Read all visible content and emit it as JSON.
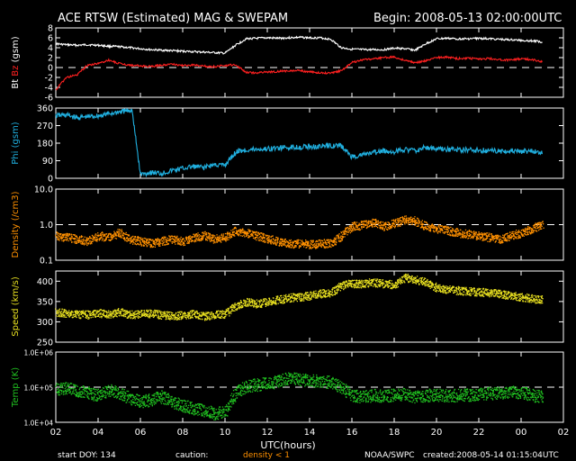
{
  "header": {
    "title": "ACE RTSW (Estimated) MAG & SWEPAM",
    "begin": "Begin: 2008-05-13 02:00:00UTC"
  },
  "footer": {
    "start_doy": "start DOY: 134",
    "caution": "caution:",
    "density_note": "density < 1",
    "agency": "NOAA/SWPC",
    "created": "created:2008-05-14 01:15:04UTC"
  },
  "colors": {
    "background": "#000000",
    "axes": "#ffffff",
    "bt": "#ffffff",
    "bz": "#ff2020",
    "phi": "#20b0e0",
    "density": "#ff9000",
    "speed": "#e8e020",
    "temp": "#20c020"
  },
  "chart_data": [
    {
      "type": "line",
      "panel": "mag",
      "ylabel_parts": [
        "Bt",
        "Bz",
        "(gsm)"
      ],
      "ylim": [
        -6,
        8
      ],
      "yticks": [
        "-6",
        "-4",
        "-2",
        "0",
        "2",
        "4",
        "6",
        "8"
      ],
      "reference_line": 0,
      "series": [
        {
          "name": "Bt",
          "x": [
            2,
            2.5,
            3,
            3.5,
            4,
            4.5,
            5,
            5.5,
            6,
            6.5,
            7,
            7.5,
            8,
            8.5,
            9,
            9.5,
            10,
            10.5,
            11,
            11.5,
            12,
            12.5,
            13,
            13.5,
            14,
            14.5,
            15,
            15.5,
            16,
            16.5,
            17,
            17.5,
            18,
            18.5,
            19,
            19.5,
            20,
            20.5,
            21,
            21.5,
            22,
            22.5,
            23,
            23.5,
            24,
            24.5,
            25
          ],
          "values": [
            4.8,
            4.6,
            4.5,
            4.6,
            4.5,
            4.3,
            4.2,
            4.0,
            3.8,
            3.6,
            3.5,
            3.4,
            3.3,
            3.2,
            3.1,
            3.0,
            2.9,
            4.5,
            5.8,
            5.9,
            6.0,
            5.9,
            6.0,
            6.1,
            6.0,
            6.0,
            5.7,
            4.0,
            3.7,
            3.6,
            3.6,
            3.6,
            3.9,
            3.8,
            3.5,
            4.8,
            5.8,
            5.9,
            5.8,
            5.8,
            5.9,
            5.8,
            5.7,
            5.6,
            5.5,
            5.4,
            5.2
          ]
        },
        {
          "name": "Bz",
          "x": [
            2,
            2.5,
            3,
            3.5,
            4,
            4.5,
            5,
            5.5,
            6,
            6.5,
            7,
            7.5,
            8,
            8.5,
            9,
            9.5,
            10,
            10.5,
            11,
            11.5,
            12,
            12.5,
            13,
            13.5,
            14,
            14.5,
            15,
            15.5,
            16,
            16.5,
            17,
            17.5,
            18,
            18.5,
            19,
            19.5,
            20,
            20.5,
            21,
            21.5,
            22,
            22.5,
            23,
            23.5,
            24,
            24.5,
            25
          ],
          "values": [
            -4.5,
            -2.0,
            -1.5,
            0.5,
            0.8,
            1.5,
            0.8,
            0.5,
            0.3,
            0.2,
            0.5,
            0.7,
            0.4,
            0.5,
            0.3,
            0.2,
            0.4,
            0.6,
            -1.0,
            -1.1,
            -0.9,
            -0.8,
            -0.7,
            -0.6,
            -0.9,
            -1.0,
            -1.2,
            -0.6,
            1.0,
            1.6,
            1.7,
            2.0,
            2.1,
            1.5,
            1.0,
            1.4,
            2.0,
            2.1,
            1.8,
            1.9,
            1.7,
            1.8,
            1.6,
            1.5,
            1.8,
            1.6,
            1.2
          ]
        }
      ]
    },
    {
      "type": "line",
      "panel": "phi",
      "ylabel_parts": [
        "Phi (gsm)"
      ],
      "ylim": [
        0,
        360
      ],
      "yticks": [
        "0",
        "90",
        "180",
        "270",
        "360"
      ],
      "series": [
        {
          "name": "Phi",
          "x": [
            2,
            2.5,
            3,
            3.5,
            4,
            4.5,
            5,
            5.3,
            5.6,
            6,
            6.5,
            7,
            7.5,
            8,
            8.5,
            9,
            9.5,
            10,
            10.3,
            10.6,
            11,
            11.5,
            12,
            12.5,
            13,
            13.5,
            14,
            14.5,
            15,
            15.5,
            16,
            16.5,
            17,
            17.5,
            18,
            18.5,
            19,
            19.5,
            20,
            20.5,
            21,
            21.5,
            22,
            22.5,
            23,
            23.5,
            24,
            24.5,
            25
          ],
          "values": [
            320,
            325,
            310,
            315,
            320,
            330,
            340,
            345,
            350,
            20,
            30,
            25,
            40,
            50,
            60,
            55,
            70,
            65,
            110,
            140,
            145,
            148,
            150,
            155,
            158,
            160,
            162,
            163,
            168,
            165,
            110,
            120,
            130,
            140,
            135,
            150,
            140,
            160,
            150,
            148,
            147,
            145,
            143,
            142,
            140,
            141,
            138,
            139,
            130
          ]
        }
      ]
    },
    {
      "type": "scatter",
      "panel": "density",
      "ylabel_parts": [
        "Density (/cm3)"
      ],
      "yscale": "log",
      "ylim": [
        0.1,
        10.0
      ],
      "yticks": [
        "0.1",
        "1.0",
        "10.0"
      ],
      "reference_line": 1.0,
      "series": [
        {
          "name": "Density",
          "x": [
            2,
            2.5,
            3,
            3.5,
            4,
            4.5,
            5,
            5.5,
            6,
            6.5,
            7,
            7.5,
            8,
            8.5,
            9,
            9.5,
            10,
            10.5,
            11,
            11.5,
            12,
            12.5,
            13,
            13.5,
            14,
            14.5,
            15,
            15.5,
            16,
            16.5,
            17,
            17.5,
            18,
            18.5,
            19,
            19.5,
            20,
            20.5,
            21,
            21.5,
            22,
            22.5,
            23,
            23.5,
            24,
            24.5,
            25
          ],
          "values": [
            0.5,
            0.45,
            0.4,
            0.35,
            0.5,
            0.45,
            0.6,
            0.4,
            0.35,
            0.3,
            0.35,
            0.4,
            0.35,
            0.45,
            0.5,
            0.4,
            0.45,
            0.7,
            0.6,
            0.5,
            0.4,
            0.35,
            0.3,
            0.3,
            0.28,
            0.3,
            0.3,
            0.5,
            0.9,
            1.0,
            1.2,
            0.9,
            1.1,
            1.4,
            1.3,
            0.9,
            0.8,
            0.7,
            0.6,
            0.55,
            0.5,
            0.45,
            0.4,
            0.5,
            0.6,
            0.8,
            1.0
          ]
        }
      ]
    },
    {
      "type": "scatter",
      "panel": "speed",
      "ylabel_parts": [
        "Speed (km/s)"
      ],
      "ylim": [
        250,
        425
      ],
      "yticks": [
        "250",
        "300",
        "350",
        "400"
      ],
      "series": [
        {
          "name": "Speed",
          "x": [
            2,
            2.5,
            3,
            3.5,
            4,
            4.5,
            5,
            5.5,
            6,
            6.5,
            7,
            7.5,
            8,
            8.5,
            9,
            9.5,
            10,
            10.5,
            11,
            11.5,
            12,
            12.5,
            13,
            13.5,
            14,
            14.5,
            15,
            15.5,
            16,
            16.5,
            17,
            17.5,
            18,
            18.5,
            19,
            19.5,
            20,
            20.5,
            21,
            21.5,
            22,
            22.5,
            23,
            23.5,
            24,
            24.5,
            25
          ],
          "values": [
            325,
            322,
            320,
            318,
            322,
            320,
            325,
            318,
            320,
            322,
            318,
            315,
            318,
            320,
            315,
            318,
            320,
            340,
            350,
            345,
            350,
            355,
            360,
            362,
            365,
            370,
            372,
            390,
            395,
            395,
            398,
            395,
            392,
            410,
            405,
            398,
            385,
            380,
            378,
            376,
            374,
            372,
            370,
            365,
            362,
            358,
            355
          ]
        }
      ]
    },
    {
      "type": "scatter",
      "panel": "temp",
      "ylabel_parts": [
        "Temp (K)"
      ],
      "yscale": "log",
      "ylim": [
        10000,
        1000000
      ],
      "yticks": [
        "1.0E+04",
        "1.0E+05",
        "1.0E+06"
      ],
      "reference_line": 100000,
      "series": [
        {
          "name": "Temp",
          "x": [
            2,
            2.5,
            3,
            3.5,
            4,
            4.5,
            5,
            5.5,
            6,
            6.5,
            7,
            7.5,
            8,
            8.5,
            9,
            9.5,
            10,
            10.5,
            11,
            11.5,
            12,
            12.5,
            13,
            13.5,
            14,
            14.5,
            15,
            15.5,
            16,
            16.5,
            17,
            17.5,
            18,
            18.5,
            19,
            19.5,
            20,
            20.5,
            21,
            21.5,
            22,
            22.5,
            23,
            23.5,
            24,
            24.5,
            25
          ],
          "values": [
            90000,
            95000,
            80000,
            70000,
            60000,
            85000,
            70000,
            50000,
            40000,
            45000,
            55000,
            40000,
            30000,
            25000,
            22000,
            18000,
            20000,
            70000,
            110000,
            120000,
            130000,
            150000,
            180000,
            170000,
            160000,
            150000,
            140000,
            100000,
            60000,
            55000,
            60000,
            58000,
            62000,
            65000,
            55000,
            60000,
            62000,
            58000,
            60000,
            62000,
            65000,
            68000,
            70000,
            75000,
            72000,
            60000,
            55000
          ]
        }
      ]
    }
  ],
  "x_axis": {
    "label": "UTC(hours)",
    "ticks": [
      "02",
      "04",
      "06",
      "08",
      "10",
      "12",
      "14",
      "16",
      "18",
      "20",
      "22",
      "00",
      "02"
    ],
    "tick_hours": [
      2,
      4,
      6,
      8,
      10,
      12,
      14,
      16,
      18,
      20,
      22,
      24,
      26
    ],
    "range": [
      2,
      26
    ]
  }
}
